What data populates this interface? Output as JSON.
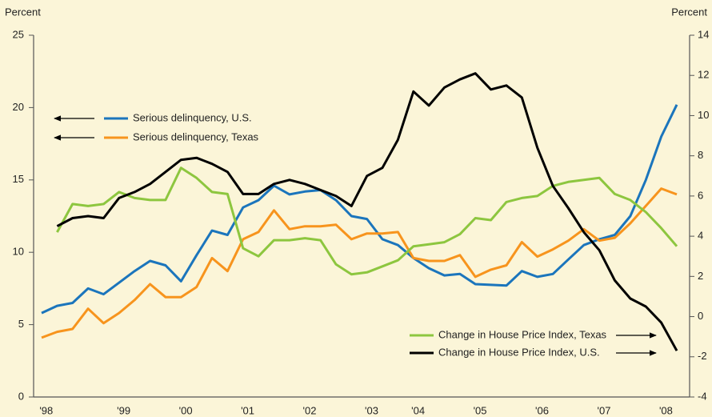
{
  "chart_data": {
    "type": "line",
    "y_label": "Percent",
    "y2_label": "Percent",
    "categories": [
      "'98",
      null,
      null,
      null,
      null,
      "'99",
      null,
      null,
      null,
      "'00",
      null,
      null,
      null,
      "'01",
      null,
      null,
      null,
      "'02",
      null,
      null,
      null,
      "'03",
      null,
      null,
      "'04",
      null,
      null,
      null,
      "'05",
      null,
      null,
      null,
      "'06",
      null,
      null,
      null,
      "'07",
      null,
      null,
      null,
      "'08",
      null
    ],
    "ylim": [
      0,
      25
    ],
    "yticks": [
      0,
      5,
      10,
      15,
      20,
      25
    ],
    "y2lim": [
      -4,
      14
    ],
    "y2ticks": [
      -4,
      -2,
      0,
      2,
      4,
      6,
      8,
      10,
      12,
      14
    ],
    "series": [
      {
        "name": "Serious delinquency, U.S.",
        "color": "#1b75bc",
        "values": [
          5.8,
          6.3,
          6.5,
          7.5,
          7.1,
          7.9,
          8.7,
          9.4,
          9.1,
          8.0,
          9.8,
          11.5,
          11.2,
          13.1,
          13.6,
          14.6,
          14.0,
          14.2,
          14.3,
          13.6,
          12.5,
          12.3,
          10.9,
          10.5,
          9.6,
          8.9,
          8.4,
          8.5,
          7.8,
          7.75,
          7.7,
          8.7,
          8.3,
          8.5,
          9.5,
          10.5,
          10.9,
          11.2,
          12.5,
          15.0,
          18.0,
          20.2
        ]
      },
      {
        "name": "Serious delinquency, Texas",
        "color": "#f7941d",
        "values": [
          4.1,
          4.5,
          4.7,
          6.1,
          5.1,
          5.8,
          6.7,
          7.8,
          6.9,
          6.9,
          7.6,
          9.6,
          8.7,
          10.9,
          11.4,
          12.9,
          11.6,
          11.8,
          11.8,
          11.9,
          10.9,
          11.3,
          11.3,
          11.4,
          9.6,
          9.4,
          9.4,
          9.8,
          8.3,
          8.8,
          9.1,
          10.7,
          9.7,
          10.2,
          10.8,
          11.6,
          10.8,
          11.0,
          12.0,
          13.2,
          14.4,
          14.0
        ]
      },
      {
        "name": "Change in House Price Index, Texas",
        "color": "#8dc63f",
        "axis": "y2",
        "values": [
          null,
          4.2,
          5.6,
          5.5,
          5.6,
          6.2,
          5.9,
          5.8,
          5.8,
          7.4,
          6.9,
          6.2,
          6.1,
          3.4,
          3.0,
          3.8,
          3.8,
          3.9,
          3.8,
          2.6,
          2.1,
          2.2,
          2.5,
          2.8,
          3.5,
          3.6,
          3.7,
          4.1,
          4.9,
          4.8,
          5.7,
          5.9,
          6.0,
          6.5,
          6.7,
          6.8,
          6.9,
          6.1,
          5.8,
          5.2,
          4.4,
          3.5
        ]
      },
      {
        "name": "Change in House Price Index, U.S.",
        "color": "#000000",
        "axis": "y2",
        "values": [
          null,
          4.5,
          4.9,
          5.0,
          4.9,
          5.9,
          6.2,
          6.6,
          7.2,
          7.8,
          7.9,
          7.6,
          7.2,
          6.1,
          6.1,
          6.6,
          6.8,
          6.6,
          6.3,
          6.0,
          5.5,
          7.0,
          7.4,
          8.8,
          11.2,
          10.5,
          11.4,
          11.8,
          12.1,
          11.3,
          11.5,
          10.9,
          8.4,
          6.5,
          5.4,
          4.2,
          3.3,
          1.8,
          0.9,
          0.5,
          -0.3,
          -1.7
        ]
      }
    ]
  }
}
